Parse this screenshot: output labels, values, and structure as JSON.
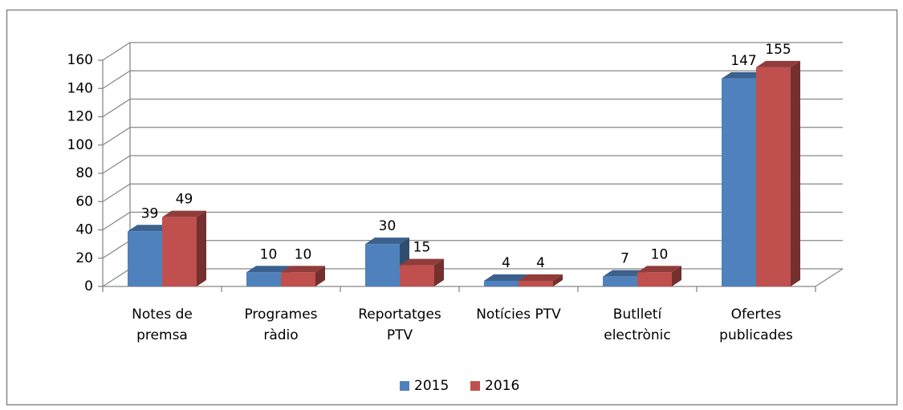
{
  "chart_data": {
    "type": "bar3d",
    "categories": [
      "Notes de premsa",
      "Programes ràdio",
      "Reportatges PTV",
      "Notícies PTV",
      "Butlletí electrònic",
      "Ofertes publicades"
    ],
    "series": [
      {
        "name": "2015",
        "color": "#4f81bd",
        "values": [
          39,
          10,
          30,
          4,
          7,
          147
        ]
      },
      {
        "name": "2016",
        "color": "#c0504d",
        "values": [
          49,
          10,
          15,
          4,
          10,
          155
        ]
      }
    ],
    "ylim": [
      0,
      160
    ],
    "yticks": [
      0,
      20,
      40,
      60,
      80,
      100,
      120,
      140,
      160
    ],
    "grid": true,
    "legend": "bottom"
  }
}
